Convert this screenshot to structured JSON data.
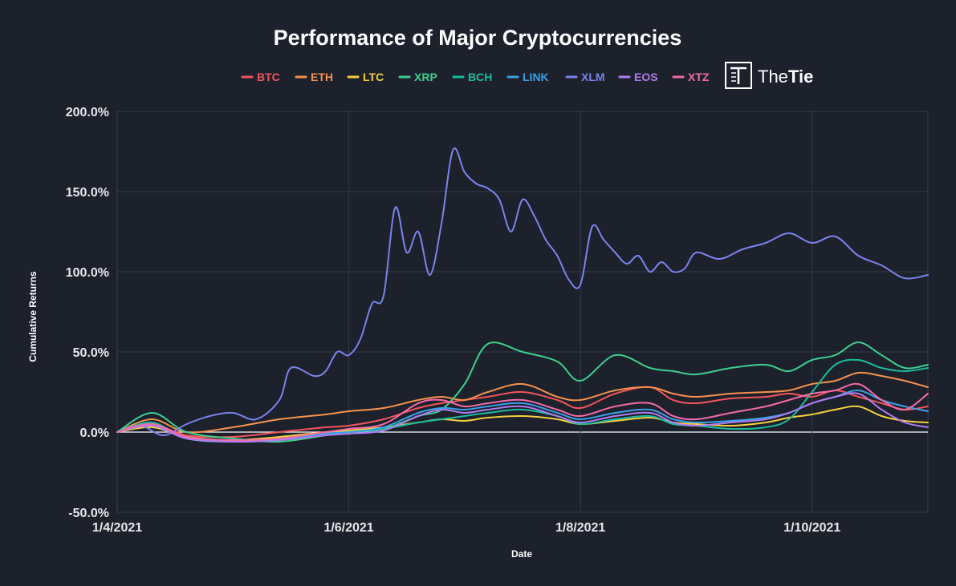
{
  "colors": {
    "background": "#1c212c",
    "grid": "#333a47",
    "zero_line": "#ffffff",
    "text": "#ffffff"
  },
  "brand": {
    "prefix": "The",
    "suffix": "Tie",
    "logo_icon": "the-tie-logo-icon"
  },
  "chart_data": {
    "type": "line",
    "title": "Performance of Major Cryptocurrencies",
    "xlabel": "Date",
    "ylabel": "Cumulative Returns",
    "ylim": [
      -50,
      200
    ],
    "yticks": [
      200,
      150,
      100,
      50,
      0,
      -50
    ],
    "ytick_labels": [
      "200.0%",
      "150.0%",
      "100.0%",
      "50.0%",
      "0.0%",
      "-50.0%"
    ],
    "x_range_months": [
      0,
      7
    ],
    "xticks": [
      0,
      2,
      4,
      6
    ],
    "xtick_labels": [
      "1/4/2021",
      "1/6/2021",
      "1/8/2021",
      "1/10/2021"
    ],
    "grid": true,
    "legend_position": "top",
    "series": [
      {
        "name": "BTC",
        "color": "#f2545b",
        "x": [
          0,
          0.3,
          0.6,
          1.0,
          1.4,
          1.8,
          2.0,
          2.3,
          2.6,
          2.8,
          3.0,
          3.2,
          3.5,
          3.8,
          4.0,
          4.3,
          4.6,
          4.8,
          5.0,
          5.3,
          5.6,
          5.8,
          6.0,
          6.2,
          6.4,
          6.6,
          6.8,
          7.0
        ],
        "y": [
          0,
          5,
          -2,
          -3,
          0,
          3,
          4,
          8,
          15,
          18,
          20,
          22,
          25,
          20,
          15,
          24,
          28,
          20,
          18,
          21,
          22,
          24,
          22,
          26,
          22,
          18,
          14,
          16
        ]
      },
      {
        "name": "ETH",
        "color": "#f7914d",
        "x": [
          0,
          0.3,
          0.6,
          1.0,
          1.4,
          1.8,
          2.0,
          2.3,
          2.6,
          2.8,
          3.0,
          3.2,
          3.5,
          3.8,
          4.0,
          4.3,
          4.6,
          4.8,
          5.0,
          5.3,
          5.6,
          5.8,
          6.0,
          6.2,
          6.4,
          6.6,
          6.8,
          7.0
        ],
        "y": [
          0,
          8,
          0,
          3,
          8,
          11,
          13,
          15,
          20,
          22,
          20,
          25,
          30,
          22,
          20,
          26,
          28,
          24,
          22,
          24,
          25,
          26,
          30,
          32,
          37,
          35,
          32,
          28
        ]
      },
      {
        "name": "LTC",
        "color": "#f4d03f",
        "x": [
          0,
          0.3,
          0.6,
          1.0,
          1.4,
          1.8,
          2.0,
          2.3,
          2.6,
          2.8,
          3.0,
          3.2,
          3.5,
          3.8,
          4.0,
          4.3,
          4.6,
          4.8,
          5.0,
          5.3,
          5.6,
          5.8,
          6.0,
          6.2,
          6.4,
          6.6,
          6.8,
          7.0
        ],
        "y": [
          0,
          3,
          -3,
          -5,
          -3,
          0,
          1,
          3,
          6,
          8,
          7,
          9,
          10,
          8,
          5,
          7,
          9,
          6,
          5,
          4,
          6,
          9,
          11,
          14,
          16,
          10,
          7,
          6
        ]
      },
      {
        "name": "XRP",
        "color": "#3ecf8e",
        "x": [
          0,
          0.3,
          0.6,
          1.0,
          1.4,
          1.8,
          2.0,
          2.3,
          2.6,
          2.8,
          3.0,
          3.2,
          3.5,
          3.8,
          4.0,
          4.3,
          4.6,
          4.8,
          5.0,
          5.3,
          5.6,
          5.8,
          6.0,
          6.2,
          6.4,
          6.6,
          6.8,
          7.0
        ],
        "y": [
          0,
          12,
          0,
          -4,
          -6,
          -2,
          0,
          2,
          10,
          14,
          30,
          55,
          50,
          44,
          32,
          48,
          40,
          38,
          36,
          40,
          42,
          38,
          45,
          48,
          56,
          48,
          40,
          42
        ]
      },
      {
        "name": "BCH",
        "color": "#1abc9c",
        "x": [
          0,
          0.3,
          0.6,
          1.0,
          1.4,
          1.8,
          2.0,
          2.3,
          2.6,
          2.8,
          3.0,
          3.2,
          3.5,
          3.8,
          4.0,
          4.3,
          4.6,
          4.8,
          5.0,
          5.3,
          5.6,
          5.8,
          6.0,
          6.2,
          6.4,
          6.6,
          6.8,
          7.0
        ],
        "y": [
          0,
          6,
          -4,
          -6,
          -4,
          -1,
          0,
          2,
          6,
          8,
          10,
          12,
          14,
          10,
          5,
          8,
          10,
          5,
          4,
          2,
          3,
          8,
          25,
          42,
          45,
          40,
          38,
          40
        ]
      },
      {
        "name": "LINK",
        "color": "#3aa0e8",
        "x": [
          0,
          0.3,
          0.6,
          1.0,
          1.4,
          1.8,
          2.0,
          2.3,
          2.6,
          2.8,
          3.0,
          3.2,
          3.5,
          3.8,
          4.0,
          4.3,
          4.6,
          4.8,
          5.0,
          5.3,
          5.6,
          5.8,
          6.0,
          6.2,
          6.4,
          6.6,
          6.8,
          7.0
        ],
        "y": [
          0,
          4,
          -4,
          -6,
          -5,
          -1,
          0,
          3,
          12,
          15,
          14,
          16,
          18,
          12,
          8,
          12,
          14,
          8,
          6,
          7,
          9,
          12,
          18,
          22,
          26,
          20,
          16,
          13
        ]
      },
      {
        "name": "XLM",
        "color": "#7b83eb",
        "x": [
          0,
          0.2,
          0.4,
          0.6,
          0.8,
          1.0,
          1.2,
          1.4,
          1.5,
          1.7,
          1.8,
          1.9,
          2.0,
          2.1,
          2.2,
          2.3,
          2.4,
          2.5,
          2.6,
          2.7,
          2.8,
          2.9,
          3.0,
          3.1,
          3.2,
          3.3,
          3.4,
          3.5,
          3.6,
          3.7,
          3.8,
          3.9,
          4.0,
          4.1,
          4.2,
          4.3,
          4.4,
          4.5,
          4.6,
          4.7,
          4.8,
          4.9,
          5.0,
          5.2,
          5.4,
          5.6,
          5.8,
          6.0,
          6.2,
          6.4,
          6.6,
          6.8,
          7.0
        ],
        "y": [
          0,
          4,
          -2,
          5,
          10,
          12,
          8,
          20,
          40,
          35,
          38,
          50,
          48,
          58,
          80,
          85,
          140,
          112,
          125,
          98,
          130,
          176,
          162,
          155,
          152,
          145,
          125,
          145,
          135,
          120,
          110,
          95,
          92,
          128,
          120,
          112,
          105,
          110,
          100,
          106,
          100,
          102,
          112,
          108,
          114,
          118,
          124,
          118,
          122,
          110,
          104,
          96,
          98
        ]
      },
      {
        "name": "EOS",
        "color": "#b07cf0",
        "x": [
          0,
          0.3,
          0.6,
          1.0,
          1.4,
          1.8,
          2.0,
          2.3,
          2.6,
          2.8,
          3.0,
          3.2,
          3.5,
          3.8,
          4.0,
          4.3,
          4.6,
          4.8,
          5.0,
          5.3,
          5.6,
          5.8,
          6.0,
          6.2,
          6.4,
          6.6,
          6.8,
          7.0
        ],
        "y": [
          0,
          4,
          -4,
          -6,
          -5,
          -2,
          -1,
          1,
          10,
          14,
          12,
          14,
          16,
          10,
          6,
          10,
          12,
          6,
          4,
          6,
          8,
          12,
          18,
          22,
          24,
          14,
          6,
          3
        ]
      },
      {
        "name": "XTZ",
        "color": "#f46ba8",
        "x": [
          0,
          0.3,
          0.6,
          1.0,
          1.4,
          1.8,
          2.0,
          2.3,
          2.6,
          2.8,
          3.0,
          3.2,
          3.5,
          3.8,
          4.0,
          4.3,
          4.6,
          4.8,
          5.0,
          5.3,
          5.6,
          5.8,
          6.0,
          6.2,
          6.4,
          6.6,
          6.8,
          7.0
        ],
        "y": [
          0,
          5,
          -3,
          -5,
          -4,
          0,
          2,
          5,
          18,
          20,
          16,
          18,
          20,
          14,
          10,
          16,
          18,
          10,
          8,
          12,
          16,
          20,
          24,
          26,
          30,
          20,
          14,
          24
        ]
      }
    ]
  }
}
